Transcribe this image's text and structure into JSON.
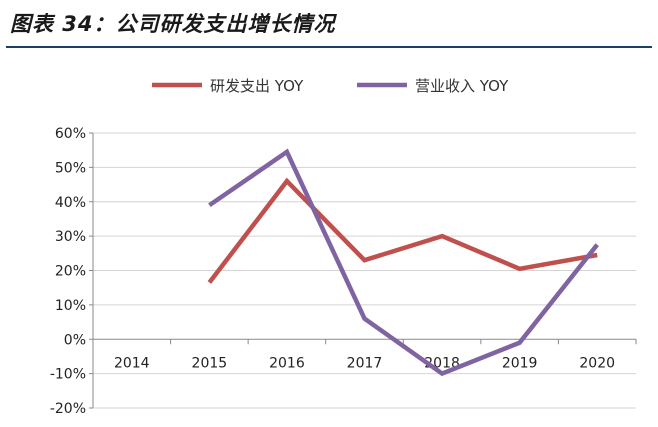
{
  "figure": {
    "title": "图表 34：公司研发支出增长情况"
  },
  "chart_data": {
    "type": "line",
    "categories": [
      "2014",
      "2015",
      "2016",
      "2017",
      "2018",
      "2019",
      "2020"
    ],
    "y_ticks": [
      "60%",
      "50%",
      "40%",
      "30%",
      "20%",
      "10%",
      "0%",
      "-10%",
      "-20%"
    ],
    "ylim": [
      -20,
      60
    ],
    "y_unit": "%",
    "grid": "horizontal",
    "legend_position": "top",
    "series": [
      {
        "name": "研发支出 YOY",
        "color": "#c0504d",
        "values": [
          null,
          16.5,
          46,
          23,
          30,
          20.5,
          24.5
        ]
      },
      {
        "name": "营业收入 YOY",
        "color": "#8064a2",
        "values": [
          null,
          39,
          54.5,
          6,
          -10,
          -1,
          27.5
        ]
      }
    ]
  }
}
